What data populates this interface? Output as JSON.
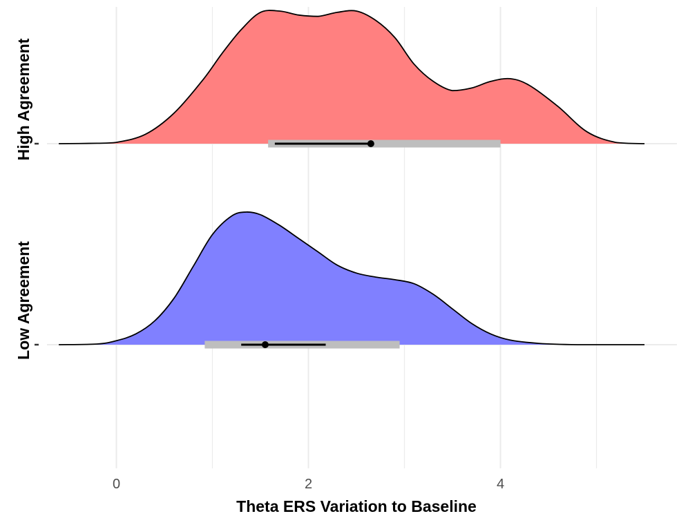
{
  "chart_data": {
    "type": "ridgeline",
    "title": "",
    "xlabel": "Theta ERS Variation to Baseline",
    "ylabel": "",
    "xlim": [
      -0.6,
      5.5
    ],
    "x_ticks": [
      0,
      2,
      4
    ],
    "x_tick_labels": [
      "0",
      "2",
      "4"
    ],
    "grid": true,
    "legend": "none",
    "series": [
      {
        "name": "High Agreement",
        "color": "#ff8080",
        "density": {
          "x": [
            -0.6,
            -0.2,
            0.0,
            0.3,
            0.6,
            0.9,
            1.1,
            1.3,
            1.5,
            1.7,
            1.9,
            2.1,
            2.3,
            2.5,
            2.7,
            2.9,
            3.1,
            3.3,
            3.5,
            3.7,
            3.9,
            4.1,
            4.3,
            4.6,
            4.9,
            5.2,
            5.5
          ],
          "y": [
            0.0,
            0.003,
            0.01,
            0.07,
            0.23,
            0.48,
            0.68,
            0.86,
            0.99,
            1.0,
            0.97,
            0.96,
            0.99,
            1.0,
            0.93,
            0.8,
            0.6,
            0.47,
            0.4,
            0.42,
            0.47,
            0.49,
            0.44,
            0.28,
            0.09,
            0.01,
            0.0
          ]
        },
        "interval_outer": [
          1.58,
          4.0
        ],
        "interval_inner": [
          1.65,
          2.65
        ],
        "point": 2.65
      },
      {
        "name": "Low Agreement",
        "color": "#8080ff",
        "density": {
          "x": [
            -0.6,
            -0.2,
            0.0,
            0.2,
            0.4,
            0.6,
            0.8,
            1.0,
            1.2,
            1.35,
            1.5,
            1.7,
            1.9,
            2.1,
            2.3,
            2.5,
            2.7,
            2.9,
            3.1,
            3.3,
            3.5,
            3.7,
            3.9,
            4.1,
            4.4,
            4.8,
            5.2,
            5.5
          ],
          "y": [
            0.0,
            0.005,
            0.03,
            0.08,
            0.18,
            0.35,
            0.59,
            0.83,
            0.97,
            1.0,
            0.98,
            0.9,
            0.8,
            0.7,
            0.6,
            0.54,
            0.51,
            0.49,
            0.46,
            0.38,
            0.27,
            0.16,
            0.08,
            0.035,
            0.01,
            0.0,
            0.0,
            0.0
          ]
        },
        "interval_outer": [
          0.92,
          2.95
        ],
        "interval_inner": [
          1.3,
          2.18
        ],
        "point": 1.55
      }
    ]
  }
}
